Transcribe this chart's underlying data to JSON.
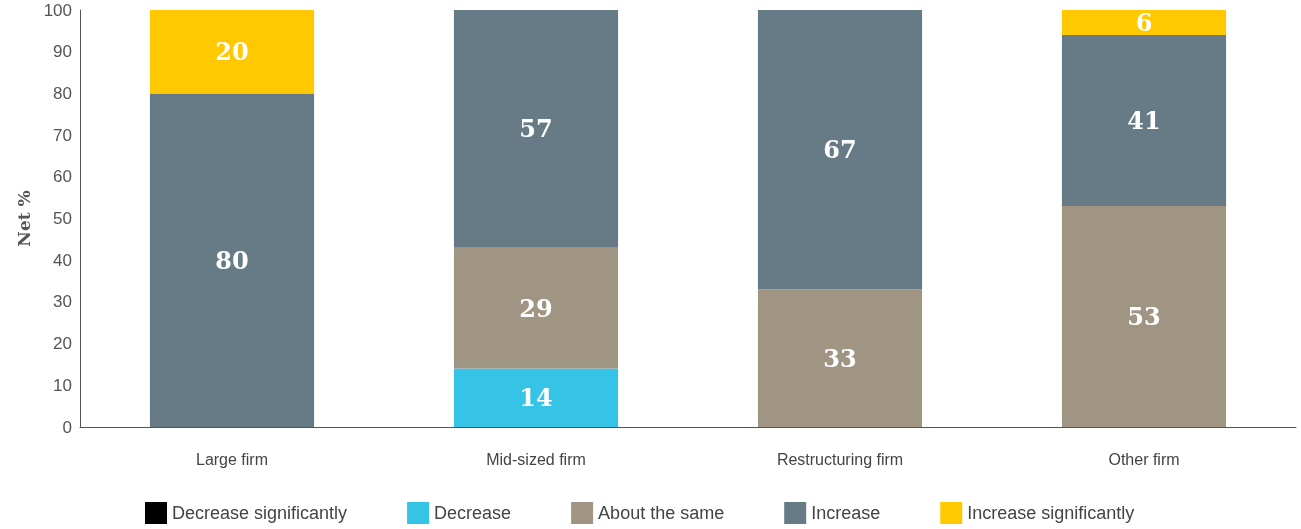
{
  "chart_data": {
    "type": "bar",
    "stacked": true,
    "ylabel": "Net %",
    "categories": [
      "Large firm",
      "Mid-sized firm",
      "Restructuring firm",
      "Other firm"
    ],
    "series": [
      {
        "name": "Decrease significantly",
        "color": "#000000",
        "values": [
          null,
          null,
          null,
          null
        ]
      },
      {
        "name": "Decrease",
        "color": "#35c3e6",
        "values": [
          null,
          14,
          null,
          null
        ]
      },
      {
        "name": "About the same",
        "color": "#a09483",
        "values": [
          null,
          29,
          33,
          53
        ]
      },
      {
        "name": "Increase",
        "color": "#677b86",
        "values": [
          80,
          57,
          67,
          41
        ]
      },
      {
        "name": "Increase significantly",
        "color": "#ffc800",
        "values": [
          20,
          null,
          null,
          6
        ]
      }
    ],
    "ylim": [
      0,
      100
    ],
    "yticks": [
      0,
      10,
      20,
      30,
      40,
      50,
      60,
      70,
      80,
      90,
      100
    ],
    "grid": false,
    "legend": "bottom",
    "data_labels": true
  }
}
